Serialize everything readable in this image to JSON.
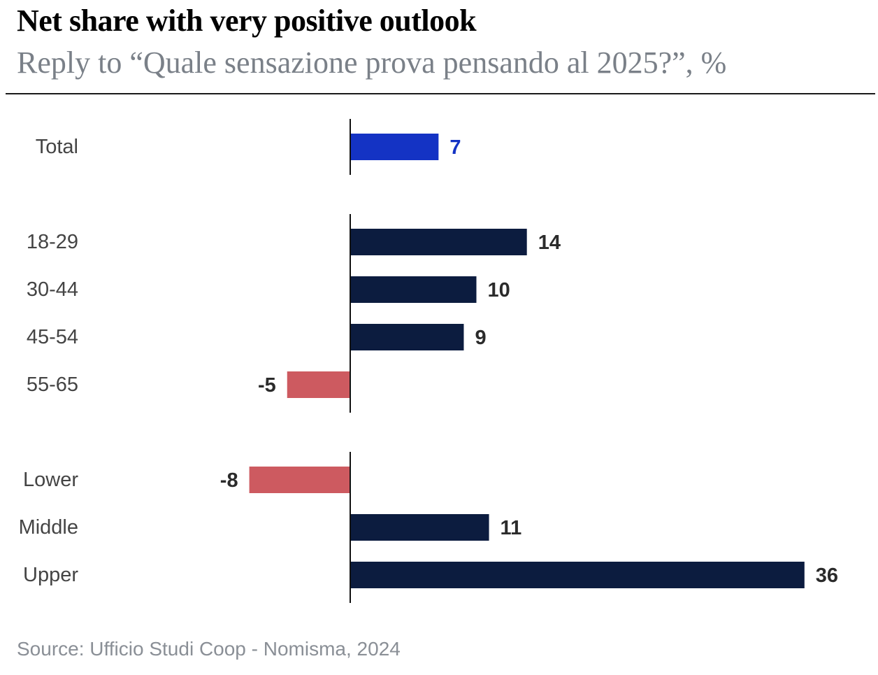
{
  "title": "Net share with very positive outlook",
  "subtitle": "Reply to “Quale sensazione prova pensando al 2025?”, %",
  "source": "Source: Ufficio Studi Coop - Nomisma, 2024",
  "colors": {
    "highlight": "#1433c4",
    "positive": "#0c1c3f",
    "negative": "#cd5a60",
    "label": "#2b2b2b",
    "category": "#444444"
  },
  "chart_data": {
    "type": "bar",
    "orientation": "horizontal",
    "title": "Net share with very positive outlook",
    "subtitle": "Reply to “Quale sensazione prova pensando al 2025?”, %",
    "xlabel": "",
    "ylabel": "",
    "grid": false,
    "legend": "none",
    "groups": [
      {
        "name": "total",
        "categories": [
          "Total"
        ],
        "values": [
          7
        ]
      },
      {
        "name": "age",
        "categories": [
          "18-29",
          "30-44",
          "45-54",
          "55-65"
        ],
        "values": [
          14,
          10,
          9,
          -5
        ]
      },
      {
        "name": "income",
        "categories": [
          "Lower",
          "Middle",
          "Upper"
        ],
        "values": [
          -8,
          11,
          36
        ]
      }
    ],
    "categories": [
      "Total",
      "18-29",
      "30-44",
      "45-54",
      "55-65",
      "Lower",
      "Middle",
      "Upper"
    ],
    "values": [
      7,
      14,
      10,
      9,
      -5,
      -8,
      11,
      36
    ],
    "highlight_category": "Total"
  }
}
